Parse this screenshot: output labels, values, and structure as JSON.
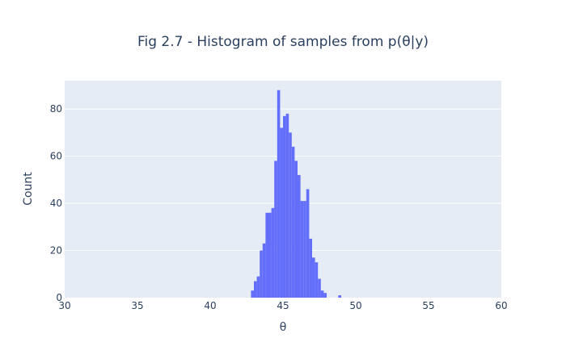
{
  "chart_data": {
    "type": "bar",
    "title": "Fig 2.7 - Histogram of samples from p(θ|y)",
    "xlabel": "θ",
    "ylabel": "Count",
    "xlim": [
      30,
      60
    ],
    "ylim": [
      0,
      92
    ],
    "xticks": [
      30,
      35,
      40,
      45,
      50,
      55,
      60
    ],
    "yticks": [
      0,
      20,
      40,
      60,
      80
    ],
    "bin_width": 0.2,
    "plot_bgcolor": "#e5ecf6",
    "bar_color": "#636efa",
    "grid_color": "#ffffff",
    "bins": [
      {
        "x": 42.8,
        "count": 3
      },
      {
        "x": 43.0,
        "count": 7
      },
      {
        "x": 43.2,
        "count": 9
      },
      {
        "x": 43.4,
        "count": 20
      },
      {
        "x": 43.6,
        "count": 23
      },
      {
        "x": 43.8,
        "count": 36
      },
      {
        "x": 44.0,
        "count": 36
      },
      {
        "x": 44.2,
        "count": 38
      },
      {
        "x": 44.4,
        "count": 58
      },
      {
        "x": 44.6,
        "count": 88
      },
      {
        "x": 44.8,
        "count": 72
      },
      {
        "x": 45.0,
        "count": 77
      },
      {
        "x": 45.2,
        "count": 78
      },
      {
        "x": 45.4,
        "count": 70
      },
      {
        "x": 45.6,
        "count": 64
      },
      {
        "x": 45.8,
        "count": 58
      },
      {
        "x": 46.0,
        "count": 52
      },
      {
        "x": 46.2,
        "count": 41
      },
      {
        "x": 46.4,
        "count": 41
      },
      {
        "x": 46.6,
        "count": 46
      },
      {
        "x": 46.8,
        "count": 25
      },
      {
        "x": 47.0,
        "count": 17
      },
      {
        "x": 47.2,
        "count": 15
      },
      {
        "x": 47.4,
        "count": 8
      },
      {
        "x": 47.6,
        "count": 3
      },
      {
        "x": 47.8,
        "count": 2
      },
      {
        "x": 48.8,
        "count": 1
      }
    ]
  }
}
